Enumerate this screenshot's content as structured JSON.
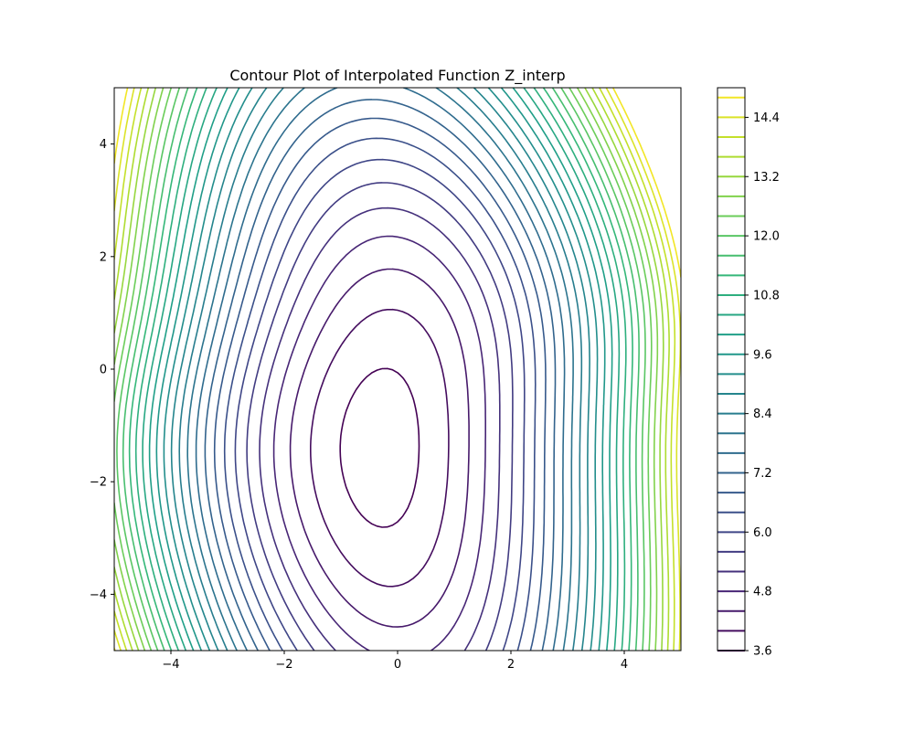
{
  "chart_data": {
    "type": "contour",
    "title": "Contour Plot of Interpolated Function Z_interp",
    "xlabel": "",
    "ylabel": "",
    "xlim": [
      -5,
      5
    ],
    "ylim": [
      -5,
      5
    ],
    "x_ticks": [
      -4,
      -2,
      0,
      2,
      4
    ],
    "y_ticks": [
      -4,
      -2,
      0,
      2,
      4
    ],
    "x_tick_labels": [
      "−4",
      "−2",
      "0",
      "2",
      "4"
    ],
    "y_tick_labels": [
      "−4",
      "−2",
      "0",
      "2",
      "4"
    ],
    "grid": false,
    "colormap": "viridis",
    "levels": {
      "min": 3.6,
      "max": 15.0,
      "step": 0.4
    },
    "colorbar": {
      "range": [
        3.6,
        15.0
      ],
      "ticks": [
        3.6,
        4.8,
        6.0,
        7.2,
        8.4,
        9.6,
        10.8,
        12.0,
        13.2,
        14.4
      ],
      "tick_labels": [
        "3.6",
        "4.8",
        "6.0",
        "7.2",
        "8.4",
        "9.6",
        "10.8",
        "12.0",
        "13.2",
        "14.4"
      ]
    },
    "minimum": {
      "x": 0.0,
      "y": -1.4,
      "value": 3.4
    }
  }
}
